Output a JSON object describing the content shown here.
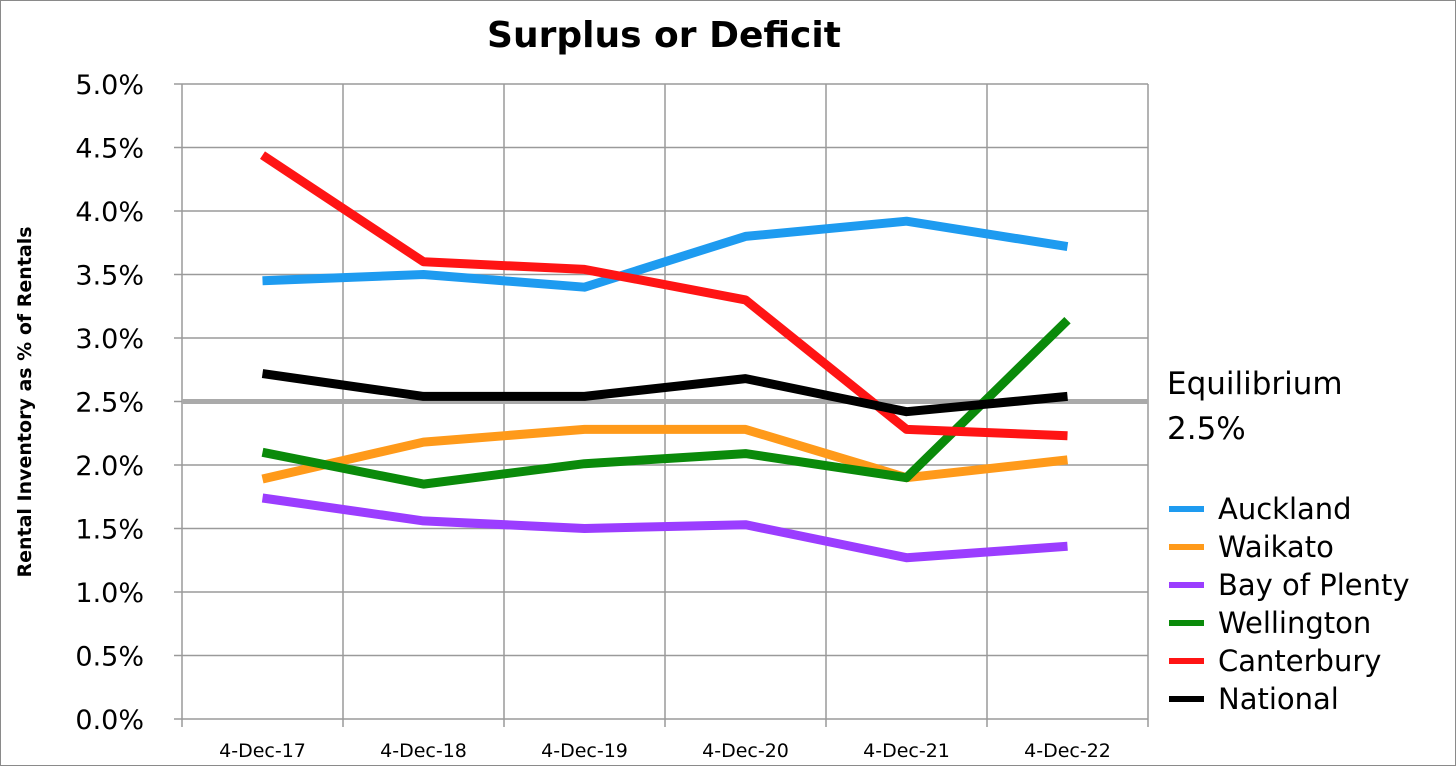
{
  "chart_data": {
    "type": "line",
    "title": "Surplus or Deficit",
    "ylabel": "Rental Inventory as % of Rentals",
    "xlabel": "",
    "categories": [
      "4-Dec-17",
      "4-Dec-18",
      "4-Dec-19",
      "4-Dec-20",
      "4-Dec-21",
      "4-Dec-22"
    ],
    "ylim": [
      0,
      5
    ],
    "yticks": [
      "0.0%",
      "0.5%",
      "1.0%",
      "1.5%",
      "2.0%",
      "2.5%",
      "3.0%",
      "3.5%",
      "4.0%",
      "4.5%",
      "5.0%"
    ],
    "grid": true,
    "legend_position": "right",
    "reference_line": {
      "value": 2.5,
      "label_line1": "Equilibrium",
      "label_line2": "2.5%",
      "color": "#aaaaaa"
    },
    "series": [
      {
        "name": "Auckland",
        "color": "#1e9bf0",
        "values": [
          3.45,
          3.5,
          3.4,
          3.8,
          3.92,
          3.72
        ]
      },
      {
        "name": "Waikato",
        "color": "#ff9a1a",
        "values": [
          1.89,
          2.18,
          2.28,
          2.28,
          1.9,
          2.04
        ]
      },
      {
        "name": "Bay of Plenty",
        "color": "#9b3dff",
        "values": [
          1.74,
          1.56,
          1.5,
          1.53,
          1.27,
          1.36
        ]
      },
      {
        "name": "Wellington",
        "color": "#0a8a0a",
        "values": [
          2.1,
          1.85,
          2.01,
          2.09,
          1.9,
          3.14
        ]
      },
      {
        "name": "Canterbury",
        "color": "#ff1414",
        "values": [
          4.44,
          3.6,
          3.54,
          3.3,
          2.28,
          2.23
        ]
      },
      {
        "name": "National",
        "color": "#000000",
        "values": [
          2.72,
          2.54,
          2.54,
          2.68,
          2.42,
          2.54
        ]
      }
    ]
  }
}
